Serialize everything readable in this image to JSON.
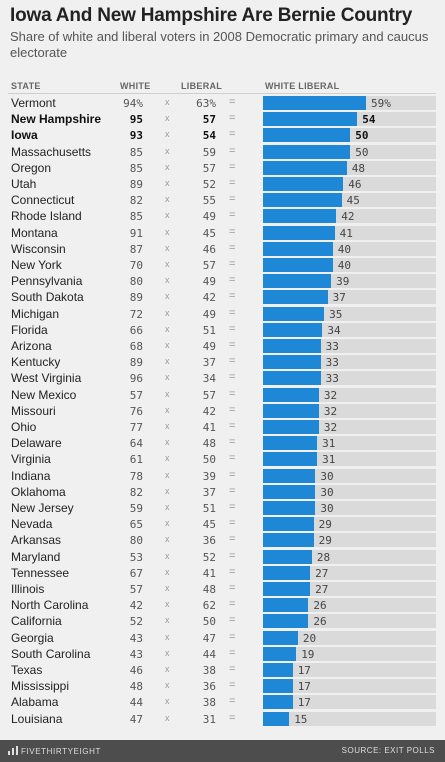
{
  "title": "Iowa And New Hampshire Are Bernie Country",
  "subtitle": "Share of white and liberal voters in 2008 Democratic primary and caucus electorate",
  "headers": {
    "state": "STATE",
    "white": "WHITE",
    "liberal": "LIBERAL",
    "white_liberal": "WHITE LIBERAL"
  },
  "operators": {
    "times": "x",
    "equals": "="
  },
  "footer": {
    "brand": "FIVETHIRTYEIGHT",
    "source": "SOURCE: EXIT POLLS"
  },
  "colors": {
    "bar": "#1e88d6",
    "track": "#dadada",
    "background": "#f0f0f0",
    "footer": "#4d4d4d"
  },
  "chart_data": {
    "type": "bar",
    "orientation": "horizontal",
    "xlim": [
      0,
      100
    ],
    "highlighted": [
      "New Hampshire",
      "Iowa"
    ],
    "rows": [
      {
        "state": "Vermont",
        "white": "94%",
        "liberal": "63%",
        "white_liberal": "59%"
      },
      {
        "state": "New Hampshire",
        "white": "95",
        "liberal": "57",
        "white_liberal": "54"
      },
      {
        "state": "Iowa",
        "white": "93",
        "liberal": "54",
        "white_liberal": "50"
      },
      {
        "state": "Massachusetts",
        "white": "85",
        "liberal": "59",
        "white_liberal": "50"
      },
      {
        "state": "Oregon",
        "white": "85",
        "liberal": "57",
        "white_liberal": "48"
      },
      {
        "state": "Utah",
        "white": "89",
        "liberal": "52",
        "white_liberal": "46"
      },
      {
        "state": "Connecticut",
        "white": "82",
        "liberal": "55",
        "white_liberal": "45"
      },
      {
        "state": "Rhode Island",
        "white": "85",
        "liberal": "49",
        "white_liberal": "42"
      },
      {
        "state": "Montana",
        "white": "91",
        "liberal": "45",
        "white_liberal": "41"
      },
      {
        "state": "Wisconsin",
        "white": "87",
        "liberal": "46",
        "white_liberal": "40"
      },
      {
        "state": "New York",
        "white": "70",
        "liberal": "57",
        "white_liberal": "40"
      },
      {
        "state": "Pennsylvania",
        "white": "80",
        "liberal": "49",
        "white_liberal": "39"
      },
      {
        "state": "South Dakota",
        "white": "89",
        "liberal": "42",
        "white_liberal": "37"
      },
      {
        "state": "Michigan",
        "white": "72",
        "liberal": "49",
        "white_liberal": "35"
      },
      {
        "state": "Florida",
        "white": "66",
        "liberal": "51",
        "white_liberal": "34"
      },
      {
        "state": "Arizona",
        "white": "68",
        "liberal": "49",
        "white_liberal": "33"
      },
      {
        "state": "Kentucky",
        "white": "89",
        "liberal": "37",
        "white_liberal": "33"
      },
      {
        "state": "West Virginia",
        "white": "96",
        "liberal": "34",
        "white_liberal": "33"
      },
      {
        "state": "New Mexico",
        "white": "57",
        "liberal": "57",
        "white_liberal": "32"
      },
      {
        "state": "Missouri",
        "white": "76",
        "liberal": "42",
        "white_liberal": "32"
      },
      {
        "state": "Ohio",
        "white": "77",
        "liberal": "41",
        "white_liberal": "32"
      },
      {
        "state": "Delaware",
        "white": "64",
        "liberal": "48",
        "white_liberal": "31"
      },
      {
        "state": "Virginia",
        "white": "61",
        "liberal": "50",
        "white_liberal": "31"
      },
      {
        "state": "Indiana",
        "white": "78",
        "liberal": "39",
        "white_liberal": "30"
      },
      {
        "state": "Oklahoma",
        "white": "82",
        "liberal": "37",
        "white_liberal": "30"
      },
      {
        "state": "New Jersey",
        "white": "59",
        "liberal": "51",
        "white_liberal": "30"
      },
      {
        "state": "Nevada",
        "white": "65",
        "liberal": "45",
        "white_liberal": "29"
      },
      {
        "state": "Arkansas",
        "white": "80",
        "liberal": "36",
        "white_liberal": "29"
      },
      {
        "state": "Maryland",
        "white": "53",
        "liberal": "52",
        "white_liberal": "28"
      },
      {
        "state": "Tennessee",
        "white": "67",
        "liberal": "41",
        "white_liberal": "27"
      },
      {
        "state": "Illinois",
        "white": "57",
        "liberal": "48",
        "white_liberal": "27"
      },
      {
        "state": "North Carolina",
        "white": "42",
        "liberal": "62",
        "white_liberal": "26"
      },
      {
        "state": "California",
        "white": "52",
        "liberal": "50",
        "white_liberal": "26"
      },
      {
        "state": "Georgia",
        "white": "43",
        "liberal": "47",
        "white_liberal": "20"
      },
      {
        "state": "South Carolina",
        "white": "43",
        "liberal": "44",
        "white_liberal": "19"
      },
      {
        "state": "Texas",
        "white": "46",
        "liberal": "38",
        "white_liberal": "17"
      },
      {
        "state": "Mississippi",
        "white": "48",
        "liberal": "36",
        "white_liberal": "17"
      },
      {
        "state": "Alabama",
        "white": "44",
        "liberal": "38",
        "white_liberal": "17"
      },
      {
        "state": "Louisiana",
        "white": "47",
        "liberal": "31",
        "white_liberal": "15"
      }
    ]
  }
}
